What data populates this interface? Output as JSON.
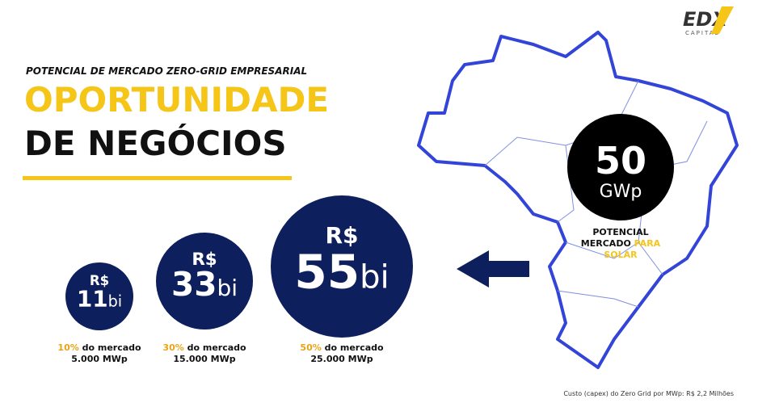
{
  "logo": {
    "name": "EDX",
    "sub": "CAPITAL"
  },
  "header": {
    "subtitle": "POTENCIAL  DE MERCADO  ZERO-GRID  EMPRESARIAL",
    "title_line1": "OPORTUNIDADE",
    "title_line2": "DE NEGÓCIOS"
  },
  "markets": [
    {
      "currency": "R$",
      "amount": "11",
      "unit": "bi",
      "share": "10%",
      "share_text": " do mercado",
      "power": "5.000 MWp"
    },
    {
      "currency": "R$",
      "amount": "33",
      "unit": "bi",
      "share": "30%",
      "share_text": " do mercado",
      "power": "15.000 MWp"
    },
    {
      "currency": "R$",
      "amount": "55",
      "unit": "bi",
      "share": "50%",
      "share_text": " do mercado",
      "power": "25.000 MWp"
    }
  ],
  "potential": {
    "amount": "50",
    "unit": "GWp",
    "line1": "POTENCIAL",
    "line2a": "MERCADO ",
    "line2b": "PARA",
    "line3": "SOLAR"
  },
  "footnote": "Custo  (capex)  do  Zero Grid  por  MWp:  R$ 2,2  Milhões"
}
